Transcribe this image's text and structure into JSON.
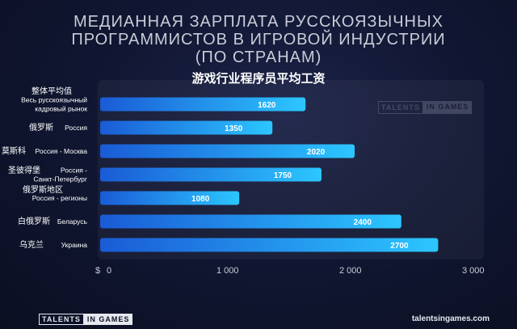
{
  "title_lines": [
    "МЕДИАННАЯ ЗАРПЛАТА РУССКОЯЗЫЧНЫХ",
    "ПРОГРАММИСТОВ В ИГРОВОЙ ИНДУСТРИИ",
    "(ПО СТРАНАМ)"
  ],
  "subtitle": "游戏行业程序员平均工资",
  "watermark": {
    "part_a": "TALENTS",
    "part_b": "IN GAMES"
  },
  "footer": {
    "logo_a": "TALENTS",
    "logo_b": "IN GAMES",
    "url": "talentsingames.com"
  },
  "colors": {
    "bar_start": "#1a5bd6",
    "bar_end": "#2cc6ff",
    "value_label": "#ffffff",
    "axis_tick": "#c9cbd6",
    "row_label": "#ffffff"
  },
  "chart_data": {
    "type": "bar",
    "orientation": "horizontal",
    "categories": [
      {
        "cn": "整体平均值",
        "ru": [
          "Весь русскоязычный",
          "кадровый рынок"
        ]
      },
      {
        "cn": "俄罗斯",
        "ru": [
          "Россия"
        ]
      },
      {
        "cn": "莫斯科",
        "ru": [
          "Россия - Москва"
        ]
      },
      {
        "cn": "圣彼得堡",
        "ru": [
          "Россия -",
          "Санкт-Петербург"
        ]
      },
      {
        "cn": "俄罗斯地区",
        "ru": [
          "Россия - регионы"
        ]
      },
      {
        "cn": "白俄罗斯",
        "ru": [
          "Беларусь"
        ]
      },
      {
        "cn": "乌克兰",
        "ru": [
          "Украина"
        ]
      }
    ],
    "values": [
      1620,
      1350,
      2020,
      1750,
      1080,
      2400,
      2700
    ],
    "value_labels": [
      "1620",
      "1350",
      "2020",
      "1750",
      "1080",
      "2400",
      "2700"
    ],
    "x_unit": "$",
    "xlim": [
      0,
      3000
    ],
    "x_ticks": [
      0,
      1000,
      2000,
      3000
    ],
    "x_tick_labels": [
      "0",
      "1 000",
      "2 000",
      "3 000"
    ],
    "grid": false,
    "legend": "none"
  }
}
